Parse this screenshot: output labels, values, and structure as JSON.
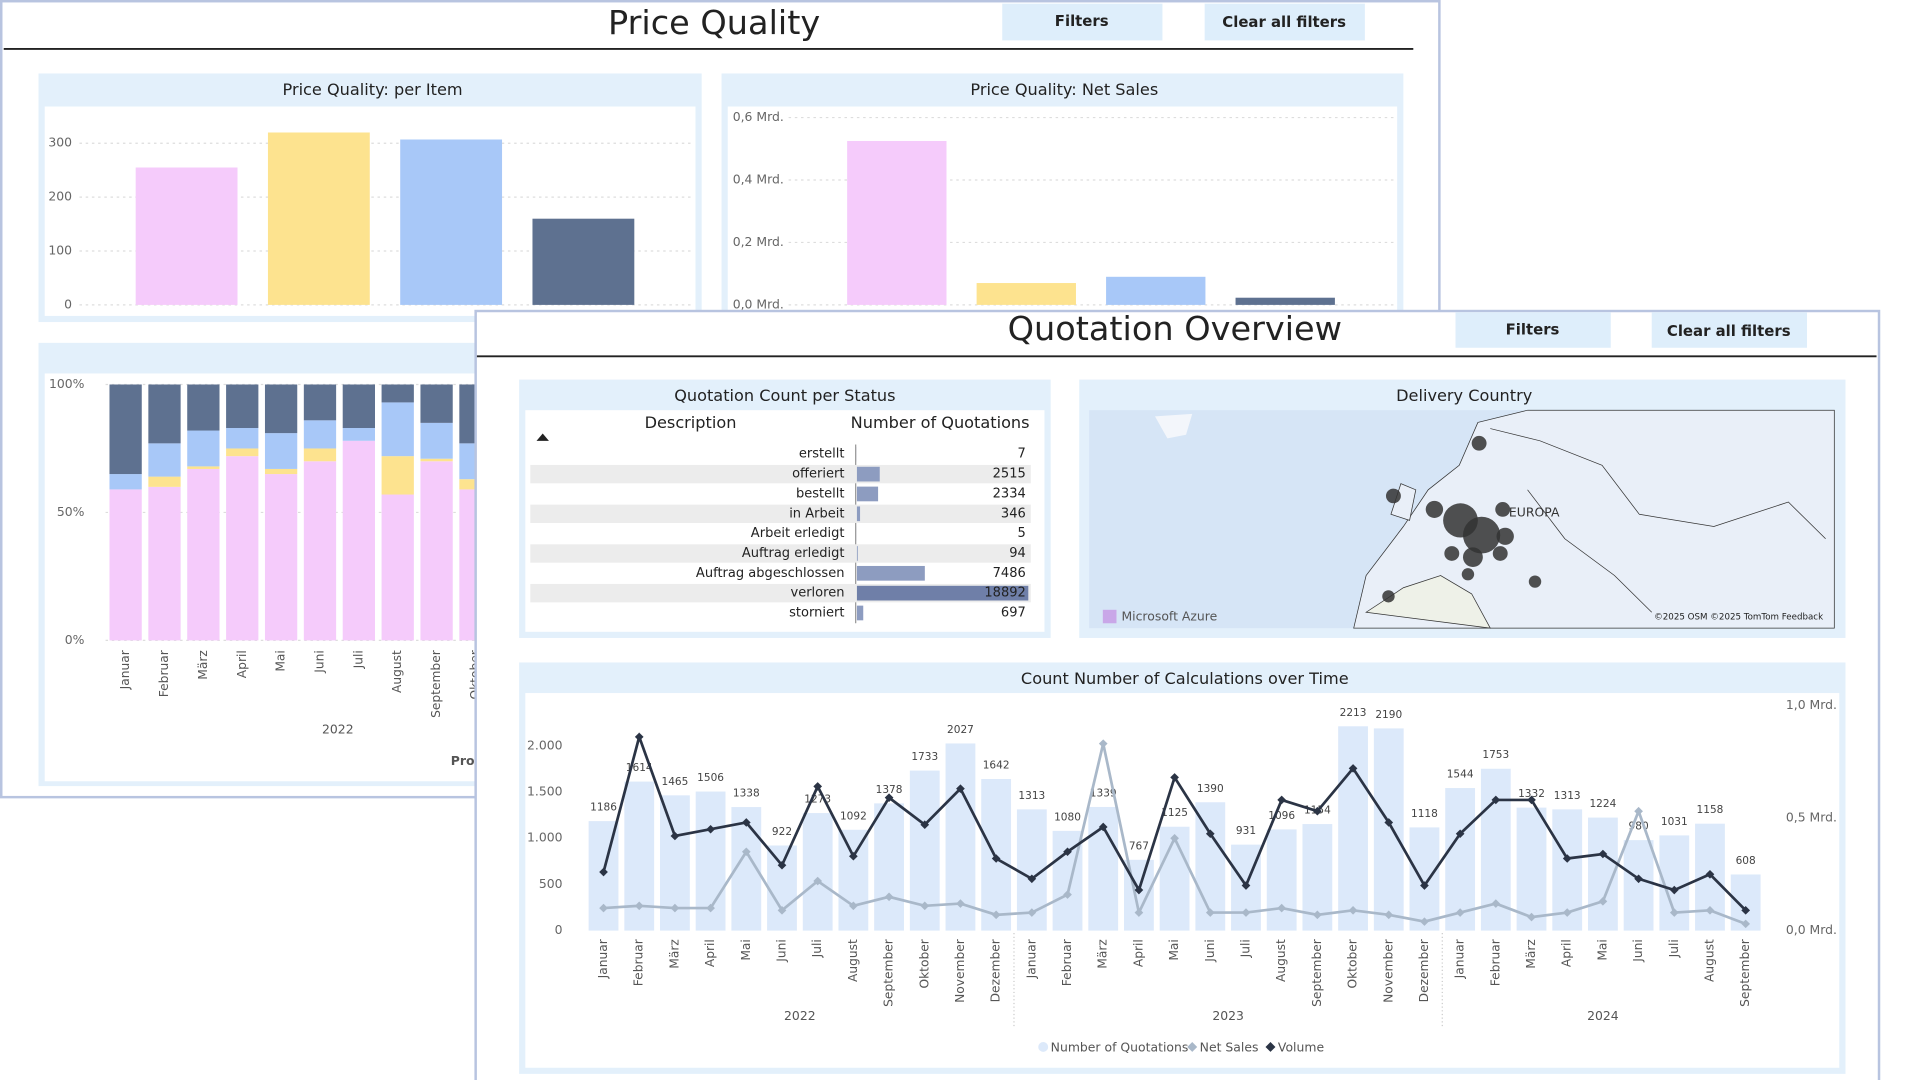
{
  "back_window": {
    "title": "Price Quality",
    "filters_button": "Filters",
    "clear_button": "Clear all filters"
  },
  "front_window": {
    "title": "Quotation Overview",
    "filters_button": "Filters",
    "clear_button": "Clear all filters"
  },
  "chart_data": [
    {
      "type": "bar",
      "title": "Price Quality: per Item",
      "values": [
        255,
        320,
        307,
        160
      ],
      "colors": [
        "#f5cbfb",
        "#fde38f",
        "#a8c8f8",
        "#5e7190"
      ],
      "ylim": [
        0,
        350
      ],
      "yticks": [
        0,
        100,
        200,
        300
      ],
      "grid": true
    },
    {
      "type": "bar",
      "title": "Price Quality: Net Sales",
      "values": [
        0.525,
        0.07,
        0.09,
        0.023
      ],
      "colors": [
        "#f5cbfb",
        "#fde38f",
        "#a8c8f8",
        "#5e7190"
      ],
      "ylim": [
        0,
        0.6
      ],
      "yticks": [
        {
          "value": 0,
          "label": "0,0 Mrd."
        },
        {
          "value": 0.2,
          "label": "0,2 Mrd."
        },
        {
          "value": 0.4,
          "label": "0,4 Mrd."
        },
        {
          "value": 0.6,
          "label": "0,6 Mrd."
        }
      ],
      "grid": true
    },
    {
      "type": "stacked-bar",
      "categories": [
        "Januar",
        "Februar",
        "März",
        "April",
        "Mai",
        "Juni",
        "Juli",
        "August",
        "September",
        "Oktober"
      ],
      "x_group": "2022",
      "x_label": "Pro",
      "series": [
        {
          "color": "#f5cbfb",
          "values": [
            59,
            60,
            67,
            72,
            65,
            70,
            78,
            57,
            70,
            59
          ]
        },
        {
          "color": "#fde38f",
          "values": [
            0,
            4,
            1,
            3,
            2,
            5,
            0,
            15,
            1,
            4
          ]
        },
        {
          "color": "#a8c8f8",
          "values": [
            6,
            13,
            14,
            8,
            14,
            11,
            5,
            21,
            14,
            14
          ]
        },
        {
          "color": "#5e7190",
          "values": [
            35,
            23,
            18,
            17,
            19,
            14,
            17,
            7,
            15,
            23
          ]
        }
      ],
      "ylim": [
        0,
        100
      ],
      "yticks": [
        {
          "value": 0,
          "label": "0%"
        },
        {
          "value": 50,
          "label": "50%"
        },
        {
          "value": 100,
          "label": "100%"
        }
      ],
      "grid": true
    },
    {
      "type": "combo",
      "title": "Count Number of Calculations over Time",
      "categories": [
        "Januar",
        "Februar",
        "März",
        "April",
        "Mai",
        "Juni",
        "Juli",
        "August",
        "September",
        "Oktober",
        "November",
        "Dezember",
        "Januar",
        "Februar",
        "März",
        "April",
        "Mai",
        "Juni",
        "Juli",
        "August",
        "September",
        "Oktober",
        "November",
        "Dezember",
        "Januar",
        "Februar",
        "März",
        "April",
        "Mai",
        "Juni",
        "Juli",
        "August",
        "September"
      ],
      "x_groups": [
        "2022",
        "2023",
        "2024"
      ],
      "series": [
        {
          "name": "Number of Quotations",
          "type": "bar",
          "color": "#dce9fa",
          "values": [
            1186,
            1614,
            1465,
            1506,
            1338,
            922,
            1273,
            1092,
            1378,
            1733,
            2027,
            1642,
            1313,
            1080,
            1339,
            767,
            1125,
            1390,
            931,
            1096,
            1154,
            2213,
            2190,
            1118,
            1544,
            1753,
            1332,
            1313,
            1224,
            980,
            1031,
            1158,
            608
          ]
        },
        {
          "name": "Net Sales",
          "type": "line",
          "axis": "y2",
          "color": "#a9b8c9",
          "values": [
            0.1,
            0.11,
            0.1,
            0.1,
            0.35,
            0.09,
            0.22,
            0.11,
            0.15,
            0.11,
            0.12,
            0.07,
            0.08,
            0.16,
            0.83,
            0.08,
            0.41,
            0.08,
            0.08,
            0.1,
            0.07,
            0.09,
            0.07,
            0.04,
            0.08,
            0.12,
            0.06,
            0.08,
            0.13,
            0.53,
            0.08,
            0.09,
            0.03
          ]
        },
        {
          "name": "Volume",
          "type": "line",
          "axis": "y2",
          "color": "#2b3445",
          "values": [
            0.26,
            0.86,
            0.42,
            0.45,
            0.48,
            0.29,
            0.64,
            0.33,
            0.59,
            0.47,
            0.63,
            0.32,
            0.23,
            0.35,
            0.46,
            0.18,
            0.68,
            0.43,
            0.2,
            0.58,
            0.53,
            0.72,
            0.48,
            0.2,
            0.43,
            0.58,
            0.58,
            0.32,
            0.34,
            0.23,
            0.18,
            0.25,
            0.09
          ]
        }
      ],
      "ylim": [
        0,
        2440
      ],
      "yticks": [
        0,
        500,
        {
          "value": 1000,
          "label": "1.000"
        },
        {
          "value": 1500,
          "label": "1.500"
        },
        {
          "value": 2000,
          "label": "2.000"
        }
      ],
      "y2lim": [
        0,
        1
      ],
      "y2ticks": [
        {
          "value": 0,
          "label": "0,0 Mrd."
        },
        {
          "value": 0.5,
          "label": "0,5 Mrd."
        },
        {
          "value": 1,
          "label": "1,0 Mrd."
        }
      ],
      "grid": false
    }
  ],
  "quotation_table": {
    "title": "Quotation Count per Status",
    "columns": [
      "Description",
      "Number of Quotations"
    ],
    "bar_color": "#8d9cc0",
    "rows": [
      [
        "erstellt",
        7
      ],
      [
        "offeriert",
        2515
      ],
      [
        "bestellt",
        2334
      ],
      [
        "in Arbeit",
        346
      ],
      [
        "Arbeit erledigt",
        5
      ],
      [
        "Auftrag erledigt",
        94
      ],
      [
        "Auftrag abgeschlossen",
        7486
      ],
      [
        "verloren",
        18892
      ],
      [
        "storniert",
        697
      ]
    ]
  },
  "map": {
    "title": "Delivery Country",
    "region_label": "EUROPA",
    "brand": "Microsoft Azure",
    "attribution": "©2025 OSM ©2025 TomTom Feedback"
  }
}
